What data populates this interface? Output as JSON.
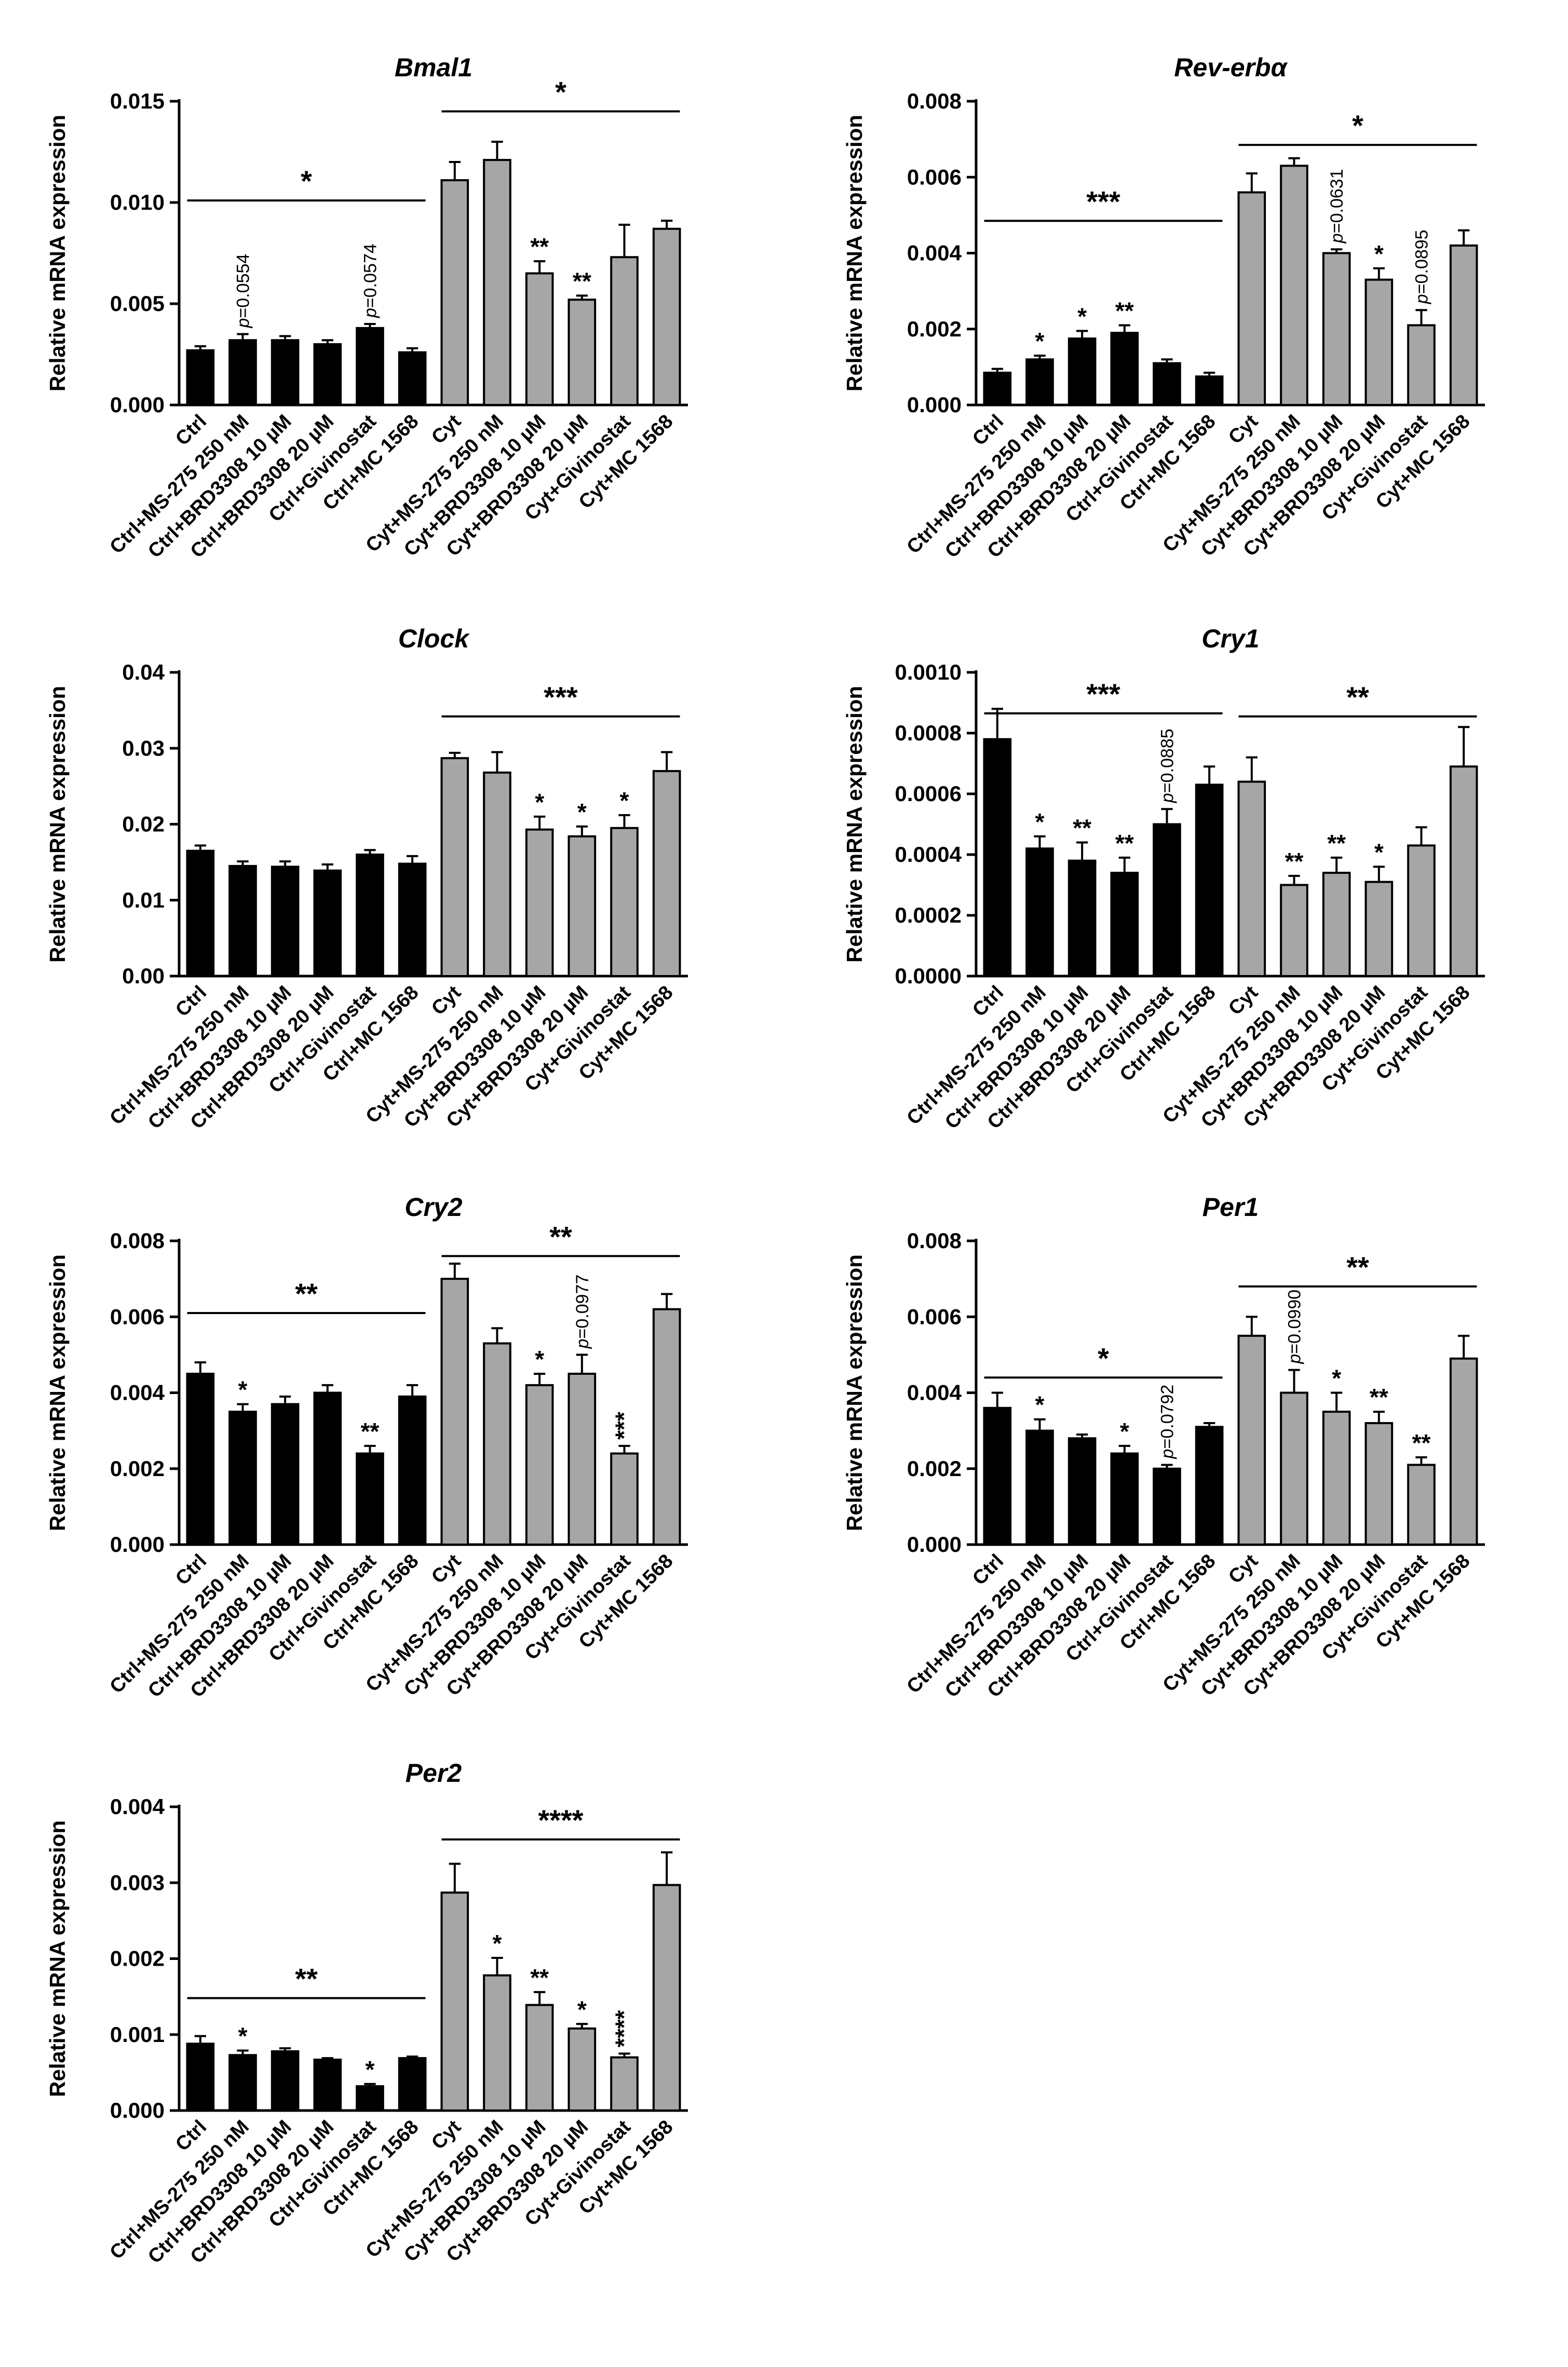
{
  "figure": {
    "categories": [
      "Ctrl",
      "Ctrl+MS-275 250 nM",
      "Ctrl+BRD3308 10 µM",
      "Ctrl+BRD3308 20 µM",
      "Ctrl+Givinostat",
      "Ctrl+MC 1568",
      "Cyt",
      "Cyt+MS-275 250 nM",
      "Cyt+BRD3308 10 µM",
      "Cyt+BRD3308 20 µM",
      "Cyt+Givinostat",
      "Cyt+MC 1568"
    ],
    "colors": {
      "ctrl_bar": "#000000",
      "cyt_bar": "#a6a6a6",
      "outline": "#000000"
    }
  },
  "chart_data": [
    {
      "type": "bar",
      "title": "Bmal1",
      "ylabel": "Relative mRNA expression",
      "ylim": [
        0,
        0.015
      ],
      "ticks": [
        "0.000",
        "0.005",
        "0.010",
        "0.015"
      ],
      "values": [
        0.0027,
        0.0032,
        0.0032,
        0.003,
        0.0038,
        0.0026,
        0.0111,
        0.0121,
        0.0065,
        0.0052,
        0.0073,
        0.0087
      ],
      "errors": [
        0.0002,
        0.0003,
        0.0002,
        0.0002,
        0.0002,
        0.0002,
        0.0009,
        0.0009,
        0.0006,
        0.0002,
        0.0016,
        0.0004
      ],
      "marks": [
        "",
        "",
        "",
        "",
        "",
        "",
        "",
        "",
        "**",
        "**",
        "",
        ""
      ],
      "pvalues": [
        "",
        "0.0554",
        "",
        "",
        "0.0574",
        "",
        "",
        "",
        "",
        "",
        "",
        ""
      ],
      "groups": [
        {
          "label": "*",
          "y": 0.0101
        },
        {
          "label": "*",
          "y": 0.0145
        }
      ]
    },
    {
      "type": "bar",
      "title": "Rev-erbα",
      "ylabel": "Relative mRNA expression",
      "ylim": [
        0,
        0.008
      ],
      "ticks": [
        "0.000",
        "0.002",
        "0.004",
        "0.006",
        "0.008"
      ],
      "values": [
        0.00085,
        0.0012,
        0.00175,
        0.0019,
        0.0011,
        0.00075,
        0.0056,
        0.0063,
        0.004,
        0.0033,
        0.0021,
        0.0042
      ],
      "errors": [
        0.0001,
        0.0001,
        0.0002,
        0.0002,
        0.0001,
        0.0001,
        0.0005,
        0.0002,
        0.0001,
        0.0003,
        0.0004,
        0.0004
      ],
      "marks": [
        "",
        "*",
        "*",
        "**",
        "",
        "",
        "",
        "",
        "",
        "*",
        "",
        ""
      ],
      "pvalues": [
        "",
        "",
        "",
        "",
        "",
        "",
        "",
        "",
        "0.0631",
        "",
        "0.0895",
        ""
      ],
      "groups": [
        {
          "label": "***",
          "y": 0.00485
        },
        {
          "label": "*",
          "y": 0.00685
        }
      ]
    },
    {
      "type": "bar",
      "title": "Clock",
      "ylabel": "Relative mRNA expression",
      "ylim": [
        0,
        0.04
      ],
      "ticks": [
        "0.00",
        "0.01",
        "0.02",
        "0.03",
        "0.04"
      ],
      "values": [
        0.0165,
        0.0145,
        0.0144,
        0.0139,
        0.016,
        0.0148,
        0.0287,
        0.0268,
        0.0193,
        0.0184,
        0.0195,
        0.027
      ],
      "errors": [
        0.0007,
        0.0006,
        0.0007,
        0.0008,
        0.0006,
        0.001,
        0.0007,
        0.0027,
        0.0017,
        0.0013,
        0.0017,
        0.0025
      ],
      "marks": [
        "",
        "",
        "",
        "",
        "",
        "",
        "",
        "",
        "*",
        "*",
        "*",
        ""
      ],
      "pvalues": [
        "",
        "",
        "",
        "",
        "",
        "",
        "",
        "",
        "",
        "",
        "",
        ""
      ],
      "groups": [
        {
          "label": "***",
          "y": 0.0342
        }
      ]
    },
    {
      "type": "bar",
      "title": "Cry1",
      "ylabel": "Relative mRNA expression",
      "ylim": [
        0,
        0.001
      ],
      "ticks": [
        "0.0000",
        "0.0002",
        "0.0004",
        "0.0006",
        "0.0008",
        "0.0010"
      ],
      "values": [
        0.00078,
        0.00042,
        0.00038,
        0.00034,
        0.0005,
        0.00063,
        0.00064,
        0.0003,
        0.00034,
        0.00031,
        0.00043,
        0.00069
      ],
      "errors": [
        0.0001,
        4e-05,
        6e-05,
        5e-05,
        5e-05,
        6e-05,
        8e-05,
        3e-05,
        5e-05,
        5e-05,
        6e-05,
        0.00013
      ],
      "marks": [
        "",
        "*",
        "**",
        "**",
        "",
        "",
        "",
        "**",
        "**",
        "*",
        "",
        ""
      ],
      "pvalues": [
        "",
        "",
        "",
        "",
        "0.0885",
        "",
        "",
        "",
        "",
        "",
        "",
        ""
      ],
      "groups": [
        {
          "label": "***",
          "y": 0.000865
        },
        {
          "label": "**",
          "y": 0.000855
        }
      ]
    },
    {
      "type": "bar",
      "title": "Cry2",
      "ylabel": "Relative mRNA expression",
      "ylim": [
        0,
        0.008
      ],
      "ticks": [
        "0.000",
        "0.002",
        "0.004",
        "0.006",
        "0.008"
      ],
      "values": [
        0.0045,
        0.0035,
        0.0037,
        0.004,
        0.0024,
        0.0039,
        0.007,
        0.0053,
        0.0042,
        0.0045,
        0.0024,
        0.0062
      ],
      "errors": [
        0.0003,
        0.0002,
        0.0002,
        0.0002,
        0.0002,
        0.0003,
        0.0004,
        0.0004,
        0.0003,
        0.0005,
        0.0002,
        0.0004
      ],
      "marks": [
        "",
        "*",
        "",
        "",
        "**",
        "",
        "",
        "",
        "*",
        "",
        "***",
        ""
      ],
      "pvalues": [
        "",
        "",
        "",
        "",
        "",
        "",
        "",
        "",
        "",
        "0.0977",
        "",
        ""
      ],
      "groups": [
        {
          "label": "**",
          "y": 0.0061
        },
        {
          "label": "**",
          "y": 0.0076
        }
      ]
    },
    {
      "type": "bar",
      "title": "Per1",
      "ylabel": "Relative mRNA expression",
      "ylim": [
        0,
        0.008
      ],
      "ticks": [
        "0.000",
        "0.002",
        "0.004",
        "0.006",
        "0.008"
      ],
      "values": [
        0.0036,
        0.003,
        0.0028,
        0.0024,
        0.002,
        0.0031,
        0.0055,
        0.004,
        0.0035,
        0.0032,
        0.0021,
        0.0049
      ],
      "errors": [
        0.0004,
        0.0003,
        0.0001,
        0.0002,
        0.0001,
        0.0001,
        0.0005,
        0.0006,
        0.0005,
        0.0003,
        0.0002,
        0.0006
      ],
      "marks": [
        "",
        "*",
        "",
        "*",
        "",
        "",
        "",
        "",
        "*",
        "**",
        "**",
        ""
      ],
      "pvalues": [
        "",
        "",
        "",
        "",
        "0.0792",
        "",
        "",
        "0.0990",
        "",
        "",
        "",
        ""
      ],
      "groups": [
        {
          "label": "*",
          "y": 0.0044
        },
        {
          "label": "**",
          "y": 0.0068
        }
      ]
    },
    {
      "type": "bar",
      "title": "Per2",
      "ylabel": "Relative mRNA expression",
      "ylim": [
        0,
        0.004
      ],
      "ticks": [
        "0.000",
        "0.001",
        "0.002",
        "0.003",
        "0.004"
      ],
      "values": [
        0.00088,
        0.00073,
        0.00078,
        0.00067,
        0.00032,
        0.00069,
        0.00287,
        0.00178,
        0.00139,
        0.00108,
        0.0007,
        0.00297
      ],
      "errors": [
        0.0001,
        6e-05,
        4e-05,
        2e-05,
        3e-05,
        2e-05,
        0.00038,
        0.00023,
        0.00017,
        6e-05,
        5e-05,
        0.00043
      ],
      "marks": [
        "",
        "*",
        "",
        "",
        "*",
        "",
        "",
        "*",
        "**",
        "*",
        "****",
        ""
      ],
      "pvalues": [
        "",
        "",
        "",
        "",
        "",
        "",
        "",
        "",
        "",
        "",
        "",
        ""
      ],
      "groups": [
        {
          "label": "**",
          "y": 0.00148
        },
        {
          "label": "****",
          "y": 0.00357
        }
      ]
    }
  ]
}
